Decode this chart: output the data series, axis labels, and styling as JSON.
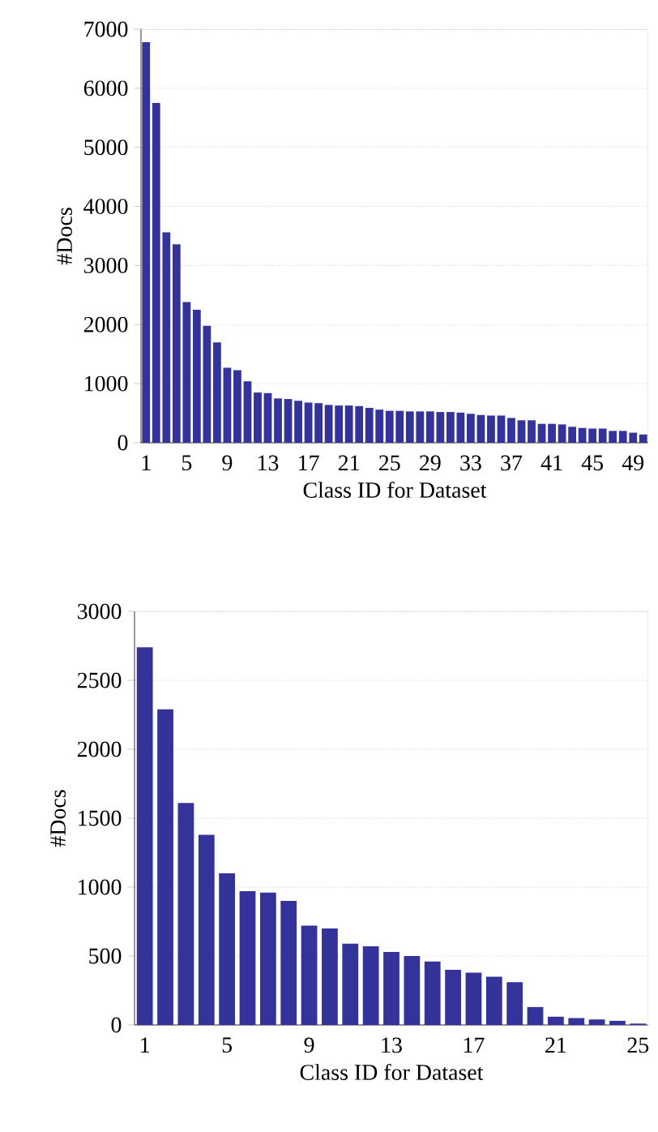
{
  "chart_data": [
    {
      "type": "bar",
      "xlabel": "Class ID for Dataset",
      "ylabel": "#Docs",
      "color": "#333399",
      "grid": "y",
      "categories": [
        "1",
        null,
        null,
        null,
        "5",
        null,
        null,
        null,
        "9",
        null,
        null,
        null,
        "13",
        null,
        null,
        null,
        "17",
        null,
        null,
        null,
        "21",
        null,
        null,
        null,
        "25",
        null,
        null,
        null,
        "29",
        null,
        null,
        null,
        "33",
        null,
        null,
        null,
        "37",
        null,
        null,
        null,
        "41",
        null,
        null,
        null,
        "45",
        null,
        null,
        null,
        "49",
        null
      ],
      "values": [
        6780,
        5750,
        3560,
        3360,
        2380,
        2250,
        1980,
        1700,
        1270,
        1230,
        1040,
        850,
        840,
        750,
        740,
        710,
        680,
        670,
        640,
        630,
        630,
        620,
        590,
        560,
        540,
        540,
        530,
        530,
        530,
        520,
        520,
        510,
        490,
        470,
        460,
        460,
        420,
        380,
        380,
        320,
        320,
        310,
        270,
        250,
        240,
        240,
        200,
        200,
        170,
        140
      ],
      "ylim": [
        0,
        7000
      ],
      "yticks": [
        0,
        1000,
        2000,
        3000,
        4000,
        5000,
        6000,
        7000
      ]
    },
    {
      "type": "bar",
      "xlabel": "Class ID for Dataset",
      "ylabel": "#Docs",
      "color": "#333399",
      "grid": "y",
      "categories": [
        "1",
        null,
        null,
        null,
        "5",
        null,
        null,
        null,
        "9",
        null,
        null,
        null,
        "13",
        null,
        null,
        null,
        "17",
        null,
        null,
        null,
        "21",
        null,
        null,
        null,
        "25"
      ],
      "values": [
        2740,
        2290,
        1610,
        1380,
        1100,
        970,
        960,
        900,
        720,
        700,
        590,
        570,
        530,
        500,
        460,
        400,
        380,
        350,
        310,
        130,
        60,
        50,
        40,
        30,
        10
      ],
      "ylim": [
        0,
        3000
      ],
      "yticks": [
        0,
        500,
        1000,
        1500,
        2000,
        2500,
        3000
      ]
    }
  ]
}
